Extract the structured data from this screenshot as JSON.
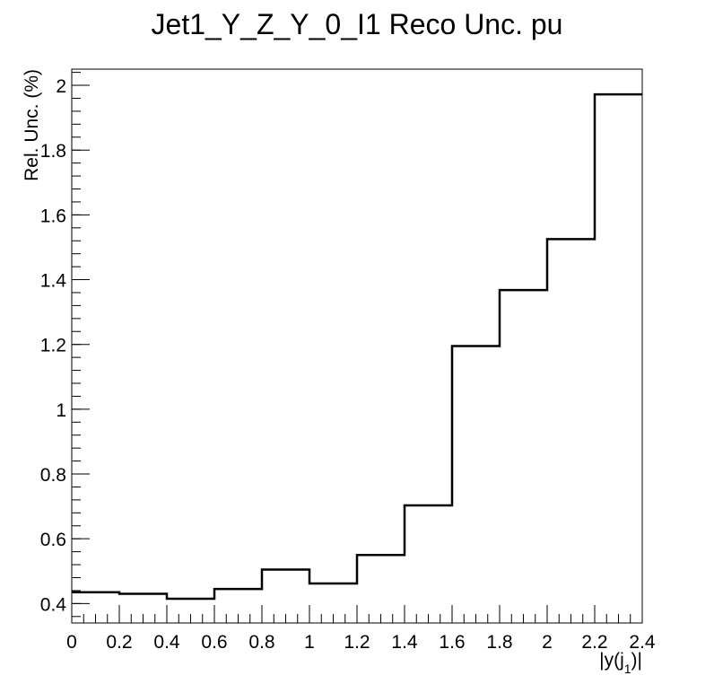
{
  "chart_data": {
    "type": "histogram-step",
    "title": "Jet1_Y_Z_Y_0_I1 Reco Unc. pu",
    "xlabel_main": "|y(j",
    "xlabel_sub": "1",
    "xlabel_end": ")|",
    "ylabel": "Rel. Unc. (%)",
    "xlim": [
      0,
      2.4
    ],
    "ylim": [
      0.34,
      2.05
    ],
    "grid": false,
    "line_color": "#000000",
    "bin_edges": [
      0,
      0.2,
      0.4,
      0.6,
      0.8,
      1.0,
      1.2,
      1.4,
      1.6,
      1.8,
      2.0,
      2.2,
      2.4
    ],
    "values": [
      0.435,
      0.43,
      0.415,
      0.445,
      0.505,
      0.462,
      0.55,
      0.703,
      1.195,
      1.368,
      1.525,
      1.972
    ],
    "x_ticks": [
      {
        "value": 0,
        "label": "0"
      },
      {
        "value": 0.2,
        "label": "0.2"
      },
      {
        "value": 0.4,
        "label": "0.4"
      },
      {
        "value": 0.6,
        "label": "0.6"
      },
      {
        "value": 0.8,
        "label": "0.8"
      },
      {
        "value": 1.0,
        "label": "1"
      },
      {
        "value": 1.2,
        "label": "1.2"
      },
      {
        "value": 1.4,
        "label": "1.4"
      },
      {
        "value": 1.6,
        "label": "1.6"
      },
      {
        "value": 1.8,
        "label": "1.8"
      },
      {
        "value": 2.0,
        "label": "2"
      },
      {
        "value": 2.2,
        "label": "2.2"
      },
      {
        "value": 2.4,
        "label": "2.4"
      }
    ],
    "y_ticks": [
      {
        "value": 0.4,
        "label": "0.4"
      },
      {
        "value": 0.6,
        "label": "0.6"
      },
      {
        "value": 0.8,
        "label": "0.8"
      },
      {
        "value": 1.0,
        "label": "1"
      },
      {
        "value": 1.2,
        "label": "1.2"
      },
      {
        "value": 1.4,
        "label": "1.4"
      },
      {
        "value": 1.6,
        "label": "1.6"
      },
      {
        "value": 1.8,
        "label": "1.8"
      },
      {
        "value": 2.0,
        "label": "2"
      }
    ],
    "x_minor_step": 0.05,
    "y_minor_step": 0.04
  }
}
